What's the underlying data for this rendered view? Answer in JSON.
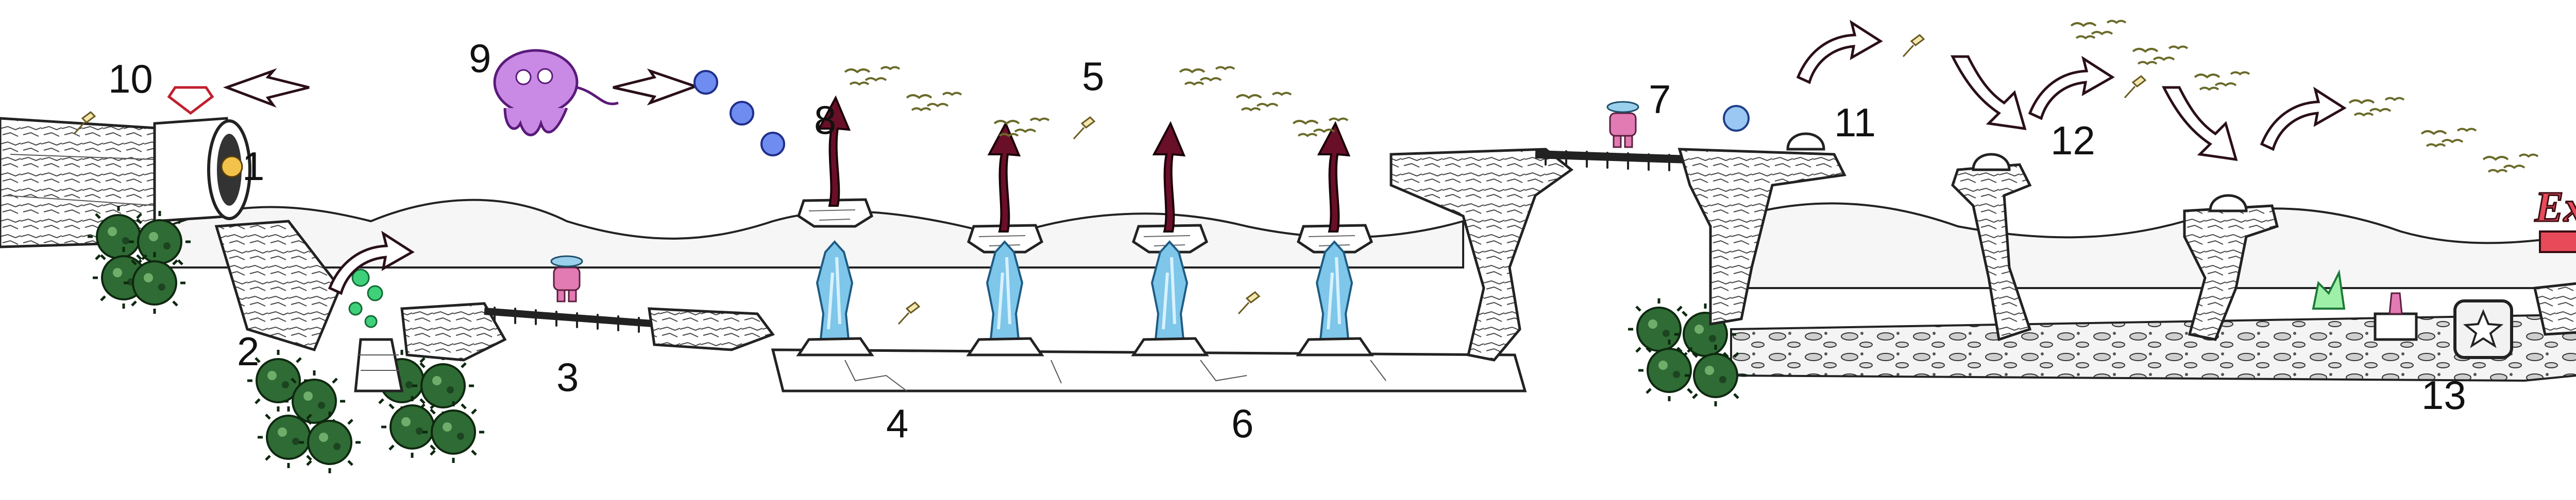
{
  "level_labels": [
    "1",
    "2",
    "3",
    "4",
    "5",
    "6",
    "7",
    "8",
    "9",
    "10",
    "11",
    "12",
    "13"
  ],
  "exit_sign": "Exit",
  "colors": {
    "background": "#ffffff",
    "ink": "#1e1e1e",
    "virus_green": "#2f6b34",
    "spore_green": "#3fd07a",
    "ice_blue": "#4aa8d6",
    "ghost_purple": "#b05ad0",
    "bubble_blue": "#4a6fd6",
    "arrow_dark": "#2a0f1a",
    "exit_red": "#e84a5a",
    "moon_grey": "#e6e6e6"
  },
  "icons": [
    "pipe-icon",
    "virus-icon",
    "ice-pillar-icon",
    "ghost-enemy-icon",
    "bubble-icon",
    "crystal-key-icon",
    "diamond-gem-icon",
    "bird-flock-icon",
    "robot-player-icon",
    "star-box-icon",
    "exit-sign-icon",
    "curved-arrow-icon"
  ]
}
